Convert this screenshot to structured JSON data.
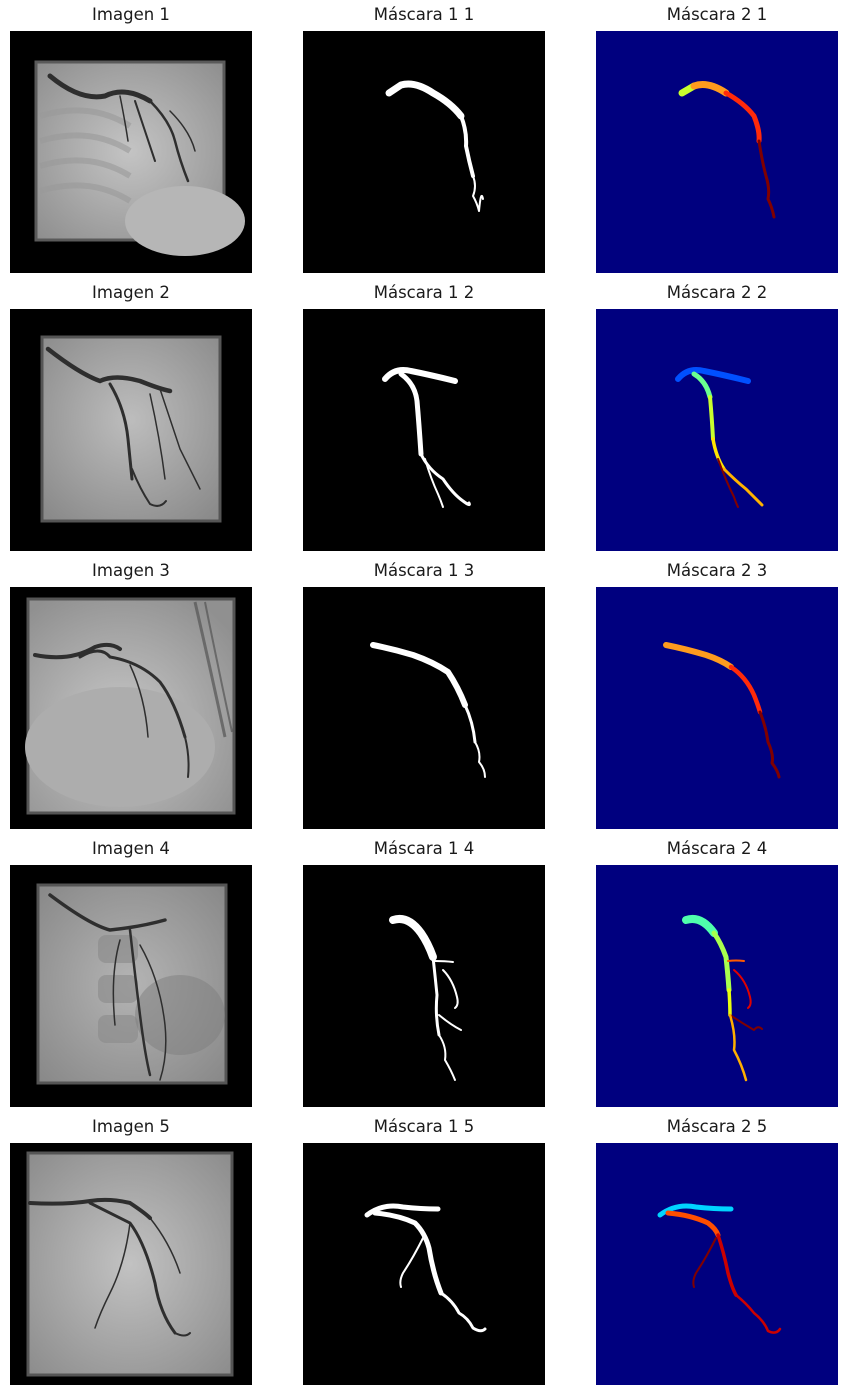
{
  "figure": {
    "rows": [
      {
        "image_title": "Imagen 1",
        "mask1_title": "Máscara 1 1",
        "mask2_title": "Máscara 2 1"
      },
      {
        "image_title": "Imagen 2",
        "mask1_title": "Máscara 1 2",
        "mask2_title": "Máscara 2 2"
      },
      {
        "image_title": "Imagen 3",
        "mask1_title": "Máscara 1 3",
        "mask2_title": "Máscara 2 3"
      },
      {
        "image_title": "Imagen 4",
        "mask1_title": "Máscara 1 4",
        "mask2_title": "Máscara 2 4"
      },
      {
        "image_title": "Imagen 5",
        "mask1_title": "Máscara 1 5",
        "mask2_title": "Máscara 2 5"
      }
    ],
    "colors": {
      "mask1_background": "#000000",
      "mask1_foreground": "#ffffff",
      "mask2_background": "#00007f",
      "image_border": "#000000"
    }
  }
}
